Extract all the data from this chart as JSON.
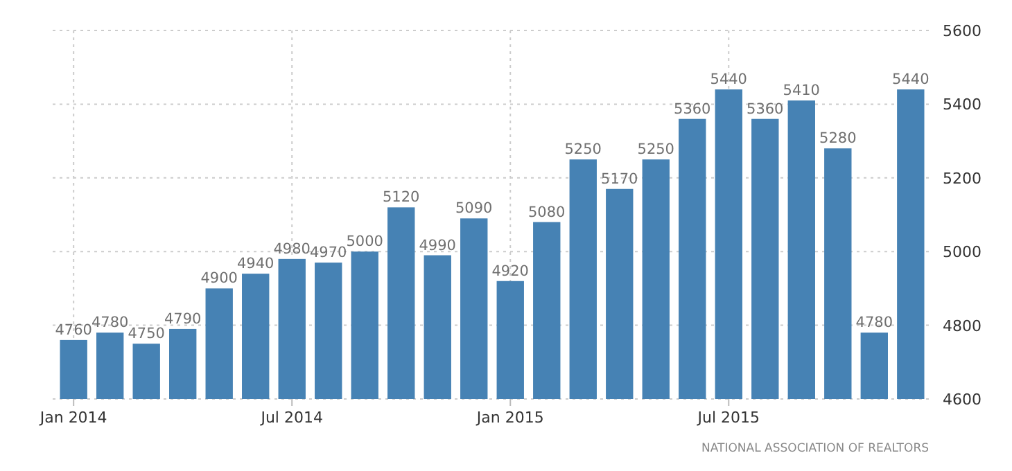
{
  "chart_data": {
    "type": "bar",
    "categories": [
      "Jan 2014",
      null,
      null,
      null,
      null,
      null,
      "Jul 2014",
      null,
      null,
      null,
      null,
      null,
      "Jan 2015",
      null,
      null,
      null,
      null,
      null,
      "Jul 2015",
      null,
      null,
      null,
      null,
      null
    ],
    "values": [
      4760,
      4780,
      4750,
      4790,
      4900,
      4940,
      4980,
      4970,
      5000,
      5120,
      4990,
      5090,
      4920,
      5080,
      5250,
      5170,
      5250,
      5360,
      5440,
      5360,
      5410,
      5280,
      4780,
      5440
    ],
    "color": "#4682b4",
    "ylim": [
      4600,
      5600
    ],
    "yticks": [
      4600,
      4800,
      5000,
      5200,
      5400,
      5600
    ],
    "grid": true,
    "data_labels": true,
    "annotations": [
      "NATIONAL ASSOCIATION OF REALTORS"
    ]
  }
}
